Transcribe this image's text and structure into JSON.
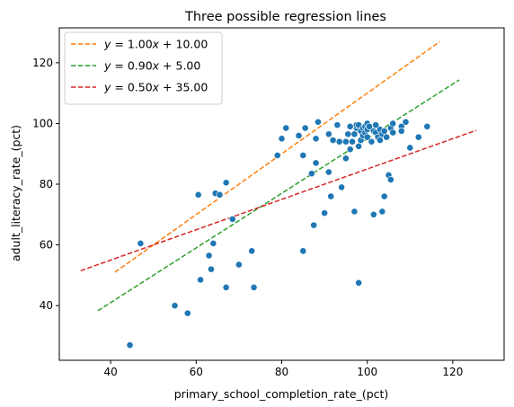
{
  "chart_data": {
    "type": "scatter",
    "title": "Three possible regression lines",
    "xlabel": "primary_school_completion_rate_(pct)",
    "ylabel": "adult_literacy_rate_(pct)",
    "xlim": [
      28,
      132
    ],
    "ylim": [
      22,
      131.5
    ],
    "x_ticks": [
      40,
      60,
      80,
      100,
      120
    ],
    "y_ticks": [
      40,
      60,
      80,
      100,
      120
    ],
    "grid": false,
    "legend_placement": "top-left",
    "point_color": "#1f77b4",
    "points": [
      [
        44.5,
        27
      ],
      [
        47,
        60.5
      ],
      [
        55,
        40
      ],
      [
        58,
        37.5
      ],
      [
        60.5,
        76.5
      ],
      [
        61,
        48.5
      ],
      [
        63,
        56.5
      ],
      [
        63.5,
        52
      ],
      [
        64,
        60.5
      ],
      [
        64.5,
        77
      ],
      [
        65.5,
        76.5
      ],
      [
        67,
        80.5
      ],
      [
        67,
        46
      ],
      [
        68.5,
        68.5
      ],
      [
        70,
        53.5
      ],
      [
        73,
        58
      ],
      [
        73.5,
        46
      ],
      [
        79,
        89.5
      ],
      [
        80,
        95
      ],
      [
        81,
        98.5
      ],
      [
        84,
        96
      ],
      [
        85,
        89.5
      ],
      [
        85,
        58
      ],
      [
        85.5,
        98.5
      ],
      [
        87,
        83.5
      ],
      [
        87.5,
        66.5
      ],
      [
        88,
        95
      ],
      [
        88,
        87
      ],
      [
        88.5,
        100.5
      ],
      [
        90,
        70.5
      ],
      [
        91,
        84
      ],
      [
        91,
        96.5
      ],
      [
        91.5,
        76
      ],
      [
        92,
        94.5
      ],
      [
        93,
        99.5
      ],
      [
        93.5,
        94
      ],
      [
        94,
        79
      ],
      [
        95,
        88.5
      ],
      [
        95,
        94
      ],
      [
        95.5,
        96.5
      ],
      [
        96,
        99
      ],
      [
        96,
        91.5
      ],
      [
        96.5,
        94
      ],
      [
        97,
        71
      ],
      [
        97,
        96.5
      ],
      [
        97.5,
        98.5
      ],
      [
        97.5,
        99.5
      ],
      [
        98,
        47.5
      ],
      [
        98,
        92.5
      ],
      [
        98,
        99.5
      ],
      [
        98.5,
        97.5
      ],
      [
        98.5,
        94.5
      ],
      [
        99,
        98.5
      ],
      [
        99,
        96
      ],
      [
        99.5,
        99
      ],
      [
        99.5,
        97
      ],
      [
        100,
        95.5
      ],
      [
        100,
        98
      ],
      [
        100,
        100
      ],
      [
        100.5,
        99
      ],
      [
        101,
        94
      ],
      [
        101.5,
        70
      ],
      [
        101.5,
        97.5
      ],
      [
        102,
        97
      ],
      [
        102,
        99.5
      ],
      [
        102.5,
        95.5
      ],
      [
        103,
        98
      ],
      [
        103,
        94.5
      ],
      [
        103.5,
        96.5
      ],
      [
        103.5,
        71
      ],
      [
        104,
        76
      ],
      [
        104,
        97.5
      ],
      [
        104.5,
        95.5
      ],
      [
        105,
        83
      ],
      [
        105.5,
        81.5
      ],
      [
        105.5,
        98.5
      ],
      [
        106,
        100
      ],
      [
        106,
        97
      ],
      [
        108,
        99
      ],
      [
        108,
        97.5
      ],
      [
        109,
        100.5
      ],
      [
        110,
        92
      ],
      [
        112,
        95.5
      ],
      [
        114,
        99
      ]
    ],
    "series": [
      {
        "name": "$y = 1.00x + 10.00$",
        "label_parts": [
          "y",
          " = 1.00",
          "x",
          " + 10.00"
        ],
        "slope": 1.0,
        "intercept": 10.0,
        "x_range": [
          41,
          117
        ],
        "color": "#ff7f0e",
        "style": "dashed"
      },
      {
        "name": "$y = 0.90x + 5.00$",
        "label_parts": [
          "y",
          " = 0.90",
          "x",
          " + 5.00"
        ],
        "slope": 0.9,
        "intercept": 5.0,
        "x_range": [
          37,
          121.5
        ],
        "color": "#2ca02c",
        "style": "dashed"
      },
      {
        "name": "$y = 0.50x + 35.00$",
        "label_parts": [
          "y",
          " = 0.50",
          "x",
          " + 35.00"
        ],
        "slope": 0.5,
        "intercept": 35.0,
        "x_range": [
          33,
          125.5
        ],
        "color": "#d62728",
        "style": "dashed"
      }
    ]
  }
}
